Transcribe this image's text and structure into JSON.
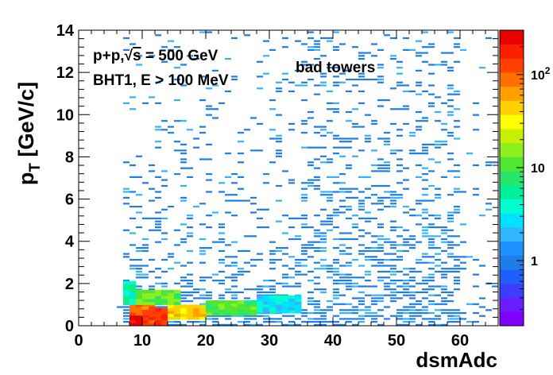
{
  "chart_data": {
    "type": "heatmap",
    "xlabel": "dsmAdc",
    "ylabel_main": "p",
    "ylabel_sub": "T",
    "ylabel_unit": " [GeV/c]",
    "xlim": [
      0,
      66
    ],
    "ylim": [
      0,
      14
    ],
    "x_ticks": [
      "0",
      "10",
      "20",
      "30",
      "40",
      "50",
      "60"
    ],
    "y_ticks": [
      "0",
      "2",
      "4",
      "6",
      "8",
      "10",
      "12",
      "14"
    ],
    "z_scale": "log",
    "z_range": [
      0.2,
      300
    ],
    "colorbar_ticks": [
      {
        "value": 1,
        "label": "1"
      },
      {
        "value": 10,
        "label": "10"
      },
      {
        "value": 100,
        "label": "10",
        "sup": "2"
      }
    ],
    "annotations": {
      "line1_prefix": "p+p,",
      "line1_sqrt": "√",
      "line1_s": "s",
      "line1_suffix": " = 500 GeV",
      "line2": "BHT1, E > 100 MeV",
      "label": "bad towers"
    },
    "dense_region": [
      {
        "x": [
          8,
          10
        ],
        "y": [
          0,
          0.5
        ],
        "count": 300
      },
      {
        "x": [
          10,
          14
        ],
        "y": [
          0,
          0.8
        ],
        "count": 150
      },
      {
        "x": [
          8,
          12
        ],
        "y": [
          0.5,
          1.0
        ],
        "count": 100
      },
      {
        "x": [
          14,
          20
        ],
        "y": [
          0.3,
          1.0
        ],
        "count": 40
      },
      {
        "x": [
          20,
          28
        ],
        "y": [
          0.5,
          1.2
        ],
        "count": 10
      },
      {
        "x": [
          28,
          35
        ],
        "y": [
          0.6,
          1.4
        ],
        "count": 3
      },
      {
        "x": [
          7,
          9
        ],
        "y": [
          1.0,
          2.0
        ],
        "count": 5
      },
      {
        "x": [
          9,
          16
        ],
        "y": [
          1.0,
          1.6
        ],
        "count": 12
      }
    ],
    "color_palette": [
      "#7f00ff",
      "#6a1cff",
      "#3d3dff",
      "#1f5fff",
      "#1e7de6",
      "#1e90ff",
      "#32b4ff",
      "#00e0ff",
      "#00ffd0",
      "#00f09a",
      "#28e66a",
      "#50e632",
      "#8cf01e",
      "#c8f000",
      "#ffff00",
      "#ffd000",
      "#ffa000",
      "#ff7000",
      "#ff4000",
      "#ff1e00",
      "#e60000"
    ]
  }
}
